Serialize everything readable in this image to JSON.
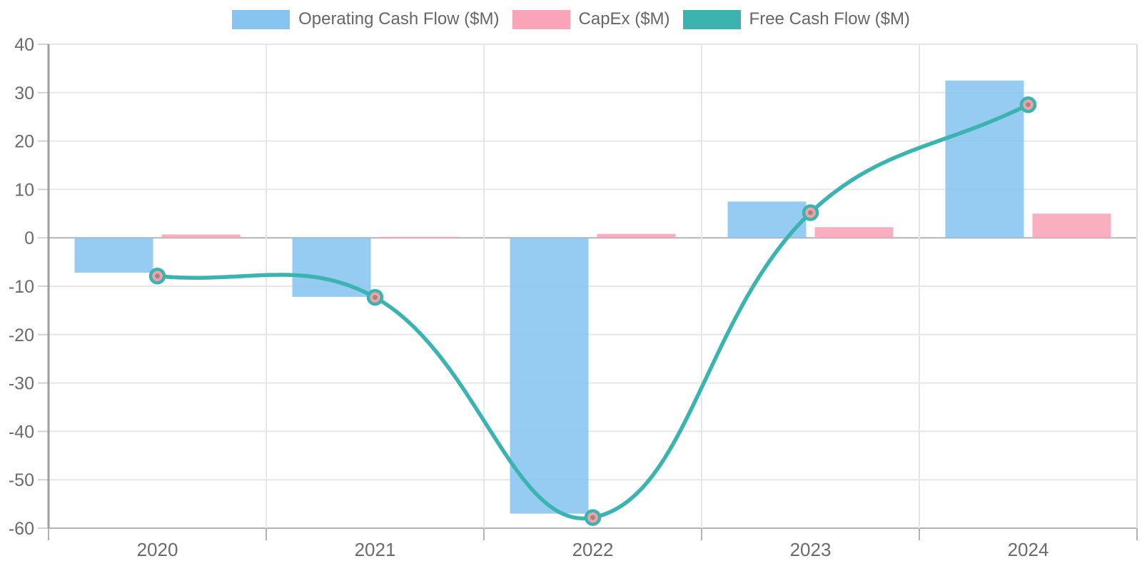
{
  "chart_data": {
    "type": "combo",
    "title": "",
    "xlabel": "",
    "ylabel": "",
    "categories": [
      "2020",
      "2021",
      "2022",
      "2023",
      "2024"
    ],
    "series": [
      {
        "name": "Operating Cash Flow ($M)",
        "type": "bar",
        "color": "#87C5F0",
        "values": [
          -7.2,
          -12.2,
          -57.0,
          7.5,
          32.5
        ]
      },
      {
        "name": "CapEx ($M)",
        "type": "bar",
        "color": "#F9A4B7",
        "values": [
          0.7,
          0.1,
          0.8,
          2.2,
          5.0
        ]
      },
      {
        "name": "Free Cash Flow ($M)",
        "type": "line",
        "color": "#3BB4B1",
        "values": [
          -7.9,
          -12.3,
          -57.8,
          5.2,
          27.5
        ]
      }
    ],
    "marker": {
      "ring_color": "#3BB4B1",
      "fill_color": "#F0A2A6",
      "dot_color": "#93807f"
    },
    "ylim": [
      -60,
      40
    ],
    "ytick_step": 10,
    "yticks": [
      "40",
      "30",
      "20",
      "10",
      "0",
      "-10",
      "-20",
      "-30",
      "-40",
      "-50",
      "-60"
    ],
    "legend_position": "top",
    "grid": true,
    "line_smoothing": "cubic-tension-0.4"
  },
  "colors": {
    "grid_light": "#e7e7e7",
    "grid_dark": "#b3b3b3",
    "axis_spine": "#9e9e9e",
    "tick_stub": "#d2d2d2",
    "tick_text": "#6b6b6b",
    "legend_text": "#666666"
  }
}
